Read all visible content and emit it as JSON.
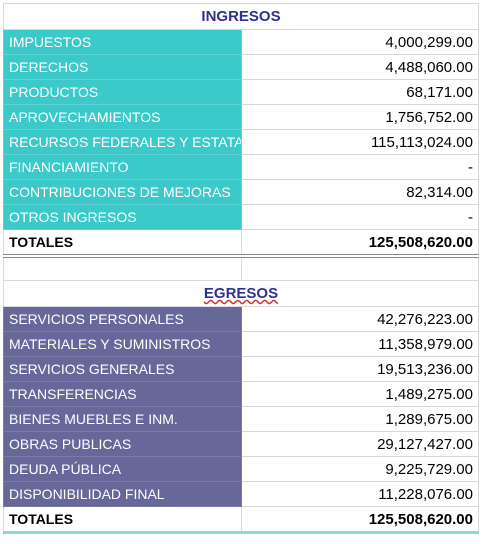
{
  "ingresos": {
    "title": "INGRESOS",
    "rows": [
      [
        "IMPUESTOS",
        "4,000,299.00"
      ],
      [
        "DERECHOS",
        "4,488,060.00"
      ],
      [
        "PRODUCTOS",
        "68,171.00"
      ],
      [
        "APROVECHAMIENTOS",
        "1,756,752.00"
      ],
      [
        "RECURSOS FEDERALES Y ESTATALES",
        "115,113,024.00"
      ],
      [
        "FINANCIAMIENTO",
        "-"
      ],
      [
        "CONTRIBUCIONES DE MEJORAS",
        "82,314.00"
      ],
      [
        "OTROS INGRESOS",
        "-"
      ]
    ],
    "total": [
      "TOTALES",
      "125,508,620.00"
    ]
  },
  "egresos": {
    "title": "EGRESOS",
    "rows": [
      [
        "SERVICIOS PERSONALES",
        "42,276,223.00"
      ],
      [
        "MATERIALES Y SUMINISTROS",
        "11,358,979.00"
      ],
      [
        "SERVICIOS GENERALES",
        "19,513,236.00"
      ],
      [
        "TRANSFERENCIAS",
        "1,489,275.00"
      ],
      [
        "BIENES MUEBLES E INM.",
        "1,289,675.00"
      ],
      [
        "OBRAS PUBLICAS",
        "29,127,427.00"
      ],
      [
        "DEUDA PÚBLICA",
        "9,225,729.00"
      ],
      [
        "DISPONIBILIDAD FINAL",
        "11,228,076.00"
      ]
    ],
    "total": [
      "TOTALES",
      "125,508,620.00"
    ]
  }
}
